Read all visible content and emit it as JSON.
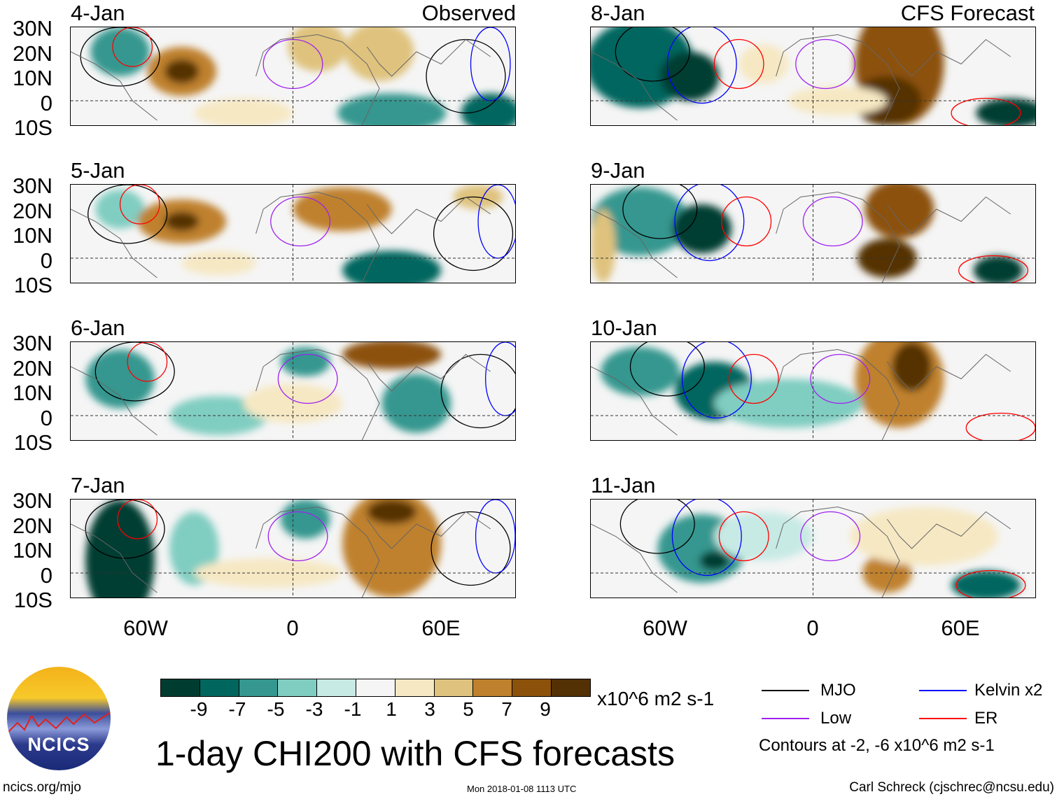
{
  "title": "1-day CHI200 with CFS forecasts",
  "columns": {
    "left": "Observed",
    "right": "CFS Forecast"
  },
  "panels": {
    "left": [
      "4-Jan",
      "5-Jan",
      "6-Jan",
      "7-Jan"
    ],
    "right": [
      "8-Jan",
      "9-Jan",
      "10-Jan",
      "11-Jan"
    ]
  },
  "lat_labels": [
    "30N",
    "20N",
    "10N",
    "0",
    "10S"
  ],
  "lon_labels": [
    "60W",
    "0",
    "60E"
  ],
  "colorbar": {
    "labels": [
      "-9",
      "-7",
      "-5",
      "-3",
      "-1",
      "1",
      "3",
      "5",
      "7",
      "9"
    ],
    "colors": [
      "#003c30",
      "#01665e",
      "#35978f",
      "#80cdc1",
      "#c7eae5",
      "#f5f5f5",
      "#f6e8c3",
      "#dfc27d",
      "#bf812d",
      "#8c510a",
      "#543005"
    ],
    "units": "x10^6 m2 s-1"
  },
  "legend": {
    "items": [
      {
        "label": "MJO",
        "color": "#000000"
      },
      {
        "label": "Kelvin x2",
        "color": "#0000ff"
      },
      {
        "label": "Low",
        "color": "#a020f0"
      },
      {
        "label": "ER",
        "color": "#ff0000"
      }
    ],
    "note": "Contours at -2, -6 x10^6 m2 s-1"
  },
  "logo": {
    "text": "NCICS"
  },
  "footer": {
    "url": "ncics.org/mjo",
    "timestamp": "Mon 2018-01-08 1113 UTC",
    "author": "Carl Schreck (cjschrec@ncsu.edu)"
  }
}
